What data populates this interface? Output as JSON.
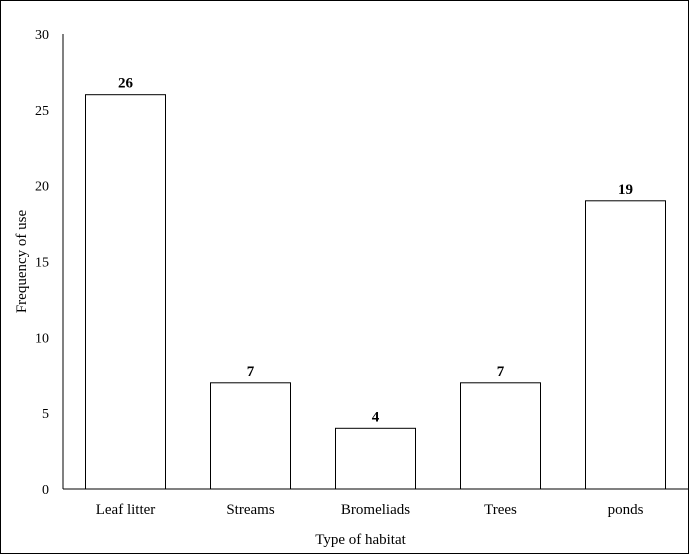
{
  "chart_data": {
    "type": "bar",
    "title": "",
    "xlabel": "Type  of habitat",
    "ylabel": "Frequency  of use",
    "categories": [
      "Leaf litter",
      "Streams",
      "Bromeliads",
      "Trees",
      "ponds"
    ],
    "values": [
      26,
      7,
      4,
      7,
      19
    ],
    "ylim": [
      0,
      30
    ],
    "yticks": [
      0,
      5,
      10,
      15,
      20,
      25,
      30
    ],
    "grid": false,
    "legend": "none",
    "colors": {
      "bar_fill": "#ffffff",
      "bar_stroke": "#000000",
      "axis": "#000000"
    }
  }
}
